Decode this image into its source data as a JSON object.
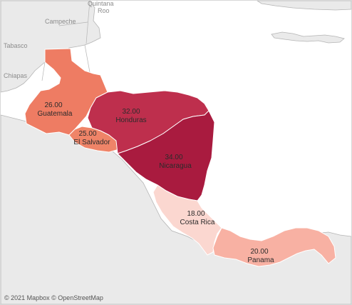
{
  "colors": {
    "land": "#eaeaea",
    "water": "#ffffff",
    "border": "#b4b4b4",
    "country_border": "#ffffff",
    "scale_low": "#fbd5cf",
    "scale_mid": "#ef7e66",
    "scale_high": "#a8193f"
  },
  "map": {
    "place_labels": {
      "quintana_roo_1": "Quintana",
      "quintana_roo_2": "Roo",
      "campeche": "Campeche",
      "tabasco": "Tabasco",
      "chiapas": "Chiapas"
    },
    "countries": {
      "guatemala": {
        "name": "Guatemala",
        "value_label": "26.00",
        "value": 26,
        "color": "#ee7c63"
      },
      "honduras": {
        "name": "Honduras",
        "value_label": "32.00",
        "value": 32,
        "color": "#be2f4d"
      },
      "el_salvador": {
        "name": "El Salvador",
        "value_label": "25.00",
        "value": 25,
        "color": "#ef8468"
      },
      "nicaragua": {
        "name": "Nicaragua",
        "value_label": "34.00",
        "value": 34,
        "color": "#a91b3f"
      },
      "costa_rica": {
        "name": "Costa Rica",
        "value_label": "18.00",
        "value": 18,
        "color": "#fbd7d0"
      },
      "panama": {
        "name": "Panama",
        "value_label": "20.00",
        "value": 20,
        "color": "#f8b1a3"
      }
    }
  },
  "attribution": "© 2021 Mapbox © OpenStreetMap"
}
